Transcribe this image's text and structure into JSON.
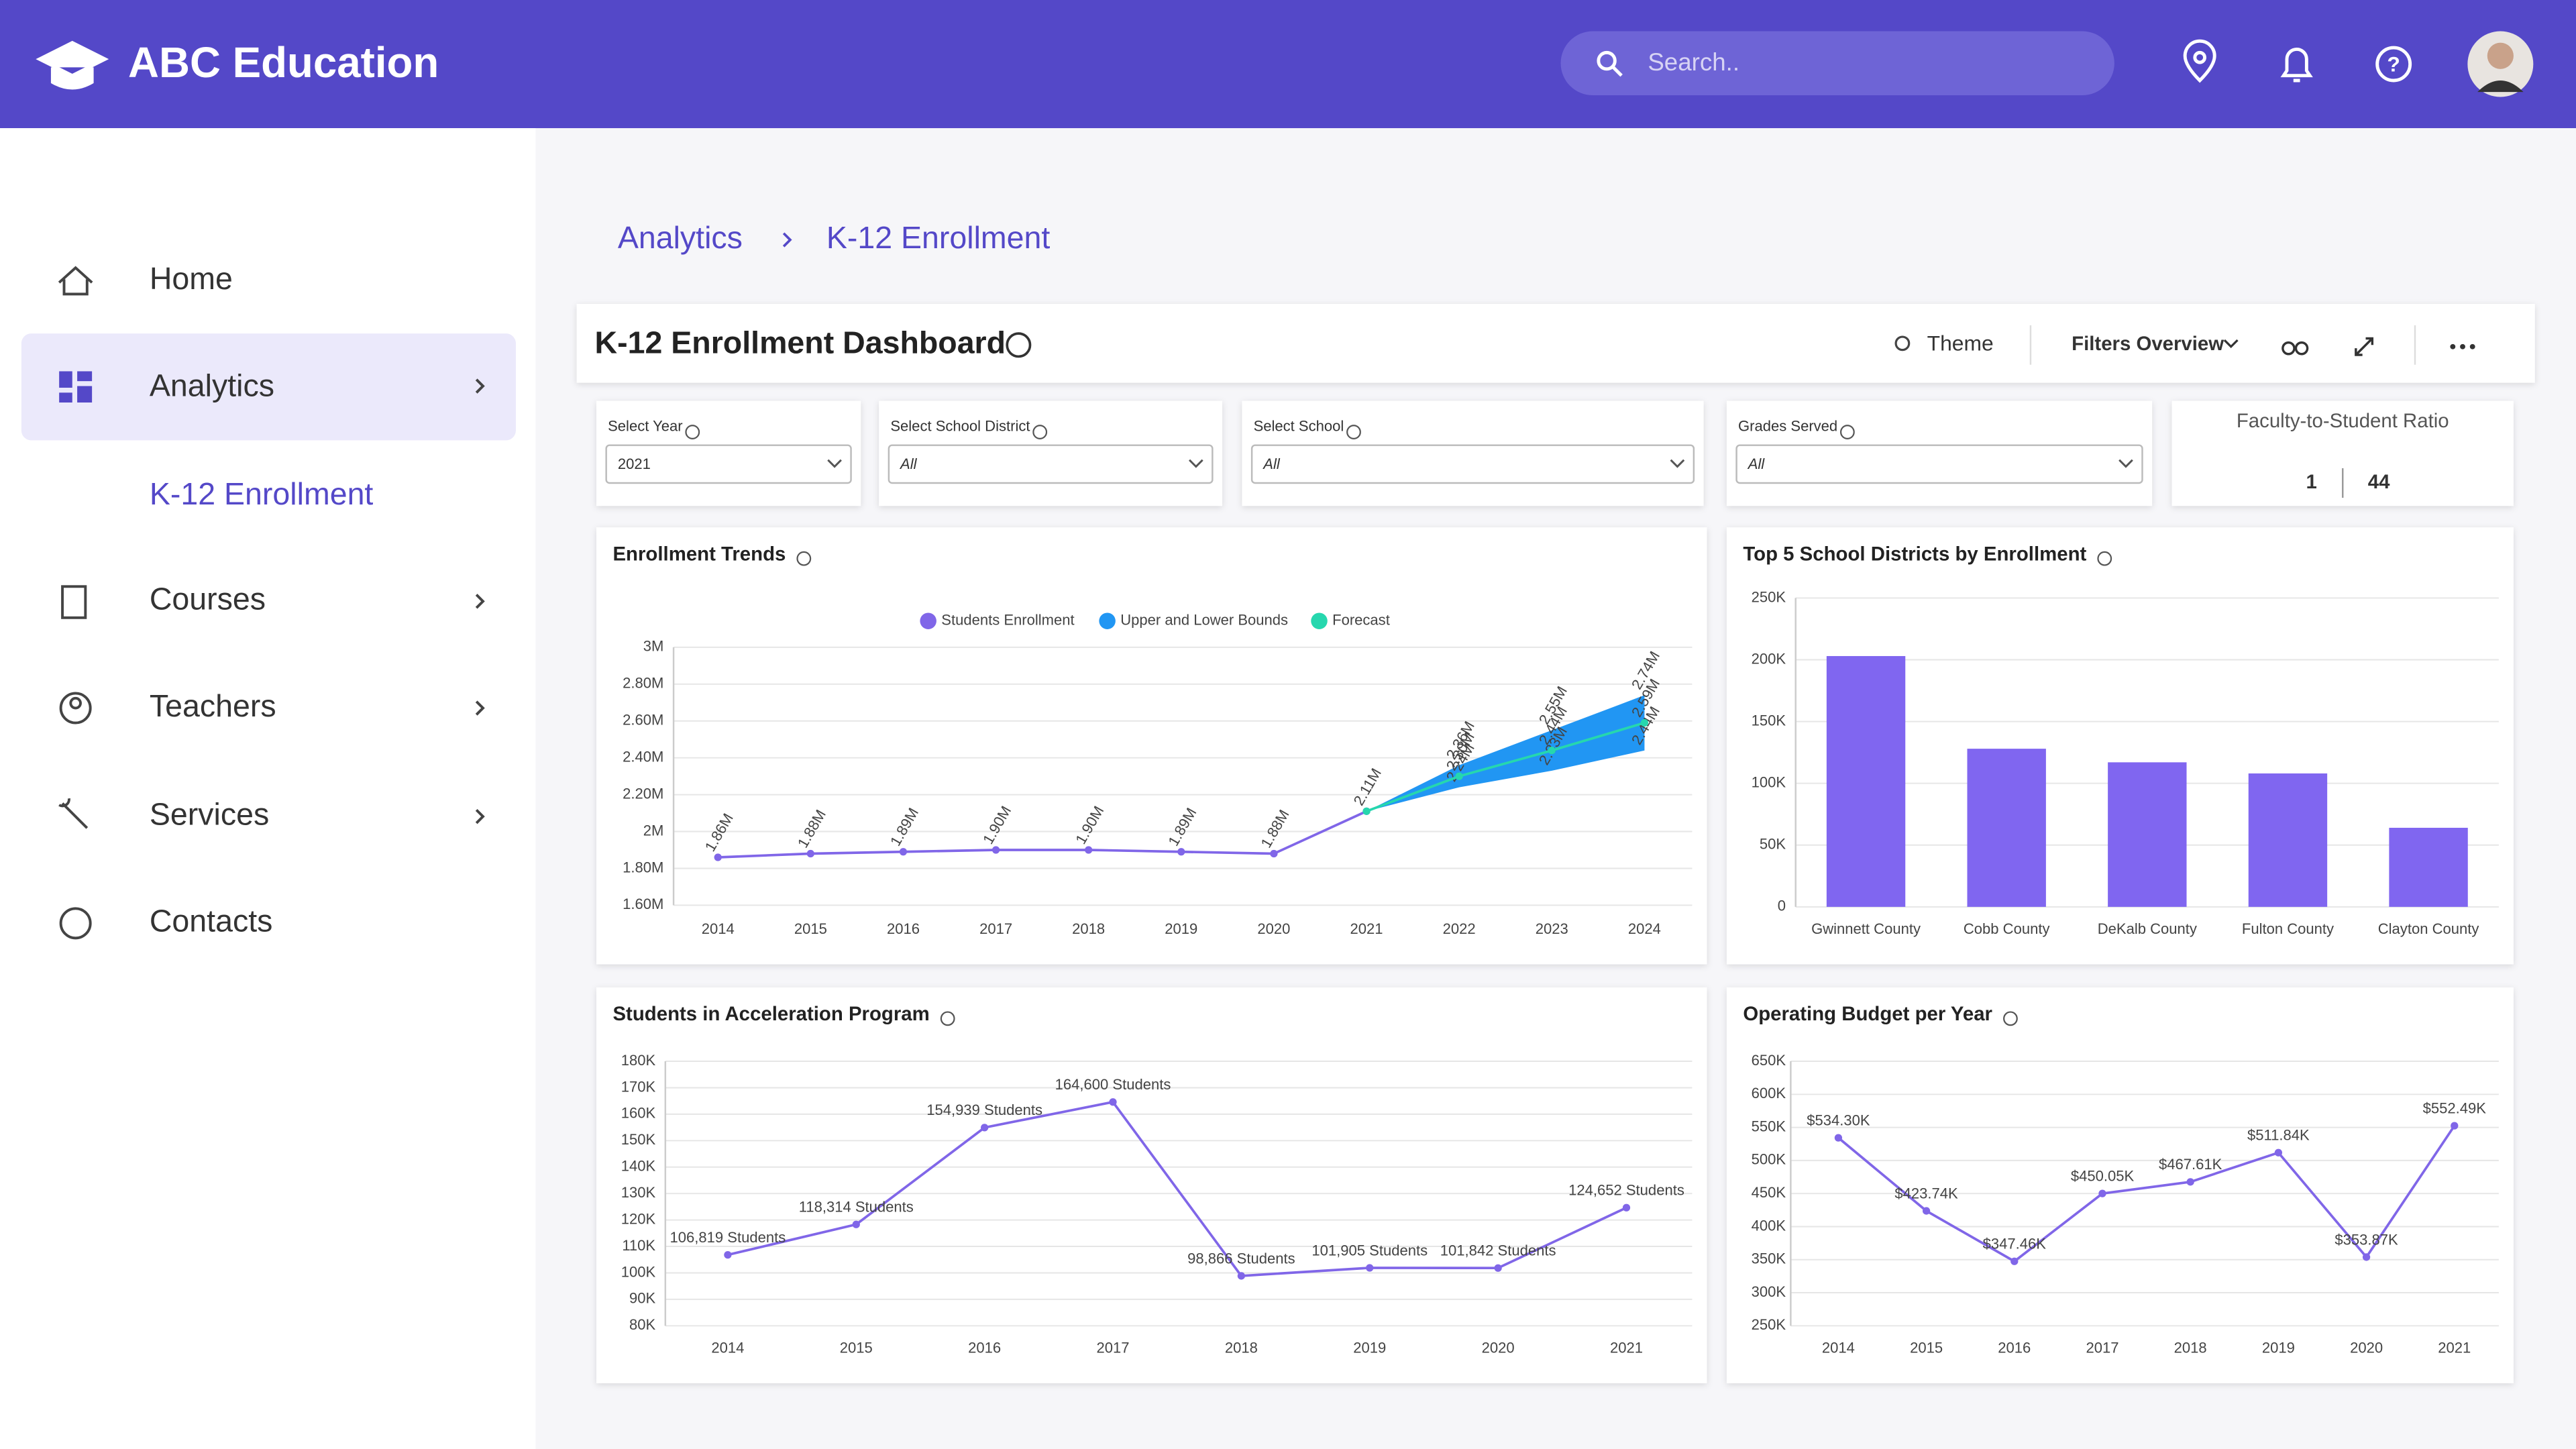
{
  "header": {
    "brand": "ABC Education",
    "search_placeholder": "Search.."
  },
  "sidebar": {
    "items": [
      "Home",
      "Analytics",
      "K-12 Enrollment",
      "Courses",
      "Teachers",
      "Services",
      "Contacts"
    ]
  },
  "breadcrumb": [
    "Analytics",
    "K-12 Enrollment"
  ],
  "dashboard": {
    "title": "K-12 Enrollment Dashboard",
    "actions": [
      "Theme",
      "Filters Overview"
    ]
  },
  "filters": [
    {
      "label": "Select Year",
      "value": "2021"
    },
    {
      "label": "Select School District",
      "value": "All"
    },
    {
      "label": "Select School",
      "value": "All"
    },
    {
      "label": "Grades Served",
      "value": "All"
    }
  ],
  "ratio": {
    "label": "Faculty-to-Student Ratio",
    "values": [
      1,
      44
    ]
  },
  "chart_data": [
    {
      "type": "line",
      "title": "Enrollment Trends",
      "categories": [
        "2014",
        "2015",
        "2016",
        "2017",
        "2018",
        "2019",
        "2020",
        "2021",
        "2022",
        "2023",
        "2024"
      ],
      "series": [
        {
          "name": "Students Enrollment",
          "color": "#8066e8",
          "values": [
            1860000,
            1880000,
            1890000,
            1900000,
            1900000,
            1890000,
            1880000,
            2110000,
            null,
            null,
            null
          ],
          "value_labels": [
            "1.86M",
            "1.88M",
            "1.89M",
            "1.90M",
            "1.90M",
            "1.89M",
            "1.88M",
            "2.11M",
            null,
            null,
            null
          ]
        },
        {
          "name": "Upper and Lower Bounds",
          "color": "#2196f3",
          "band": true,
          "values": [
            null,
            null,
            null,
            null,
            null,
            null,
            null,
            2110000,
            2360000,
            2550000,
            2740000
          ],
          "value_labels": [
            null,
            null,
            null,
            null,
            null,
            null,
            null,
            null,
            "2.36M",
            "2.55M",
            "2.74M"
          ],
          "values_low": [
            null,
            null,
            null,
            null,
            null,
            null,
            null,
            2110000,
            2240000,
            2330000,
            2440000
          ],
          "value_labels_low": [
            null,
            null,
            null,
            null,
            null,
            null,
            null,
            null,
            "2.24M",
            "2.33M",
            "2.44M"
          ]
        },
        {
          "name": "Forecast",
          "color": "#26d7ae",
          "values": [
            null,
            null,
            null,
            null,
            null,
            null,
            null,
            2110000,
            2300000,
            2440000,
            2590000
          ],
          "value_labels": [
            null,
            null,
            null,
            null,
            null,
            null,
            null,
            null,
            "2.30M",
            "2.44M",
            "2.59M"
          ]
        }
      ],
      "ylim": [
        1600000,
        3000000
      ],
      "yticks": [
        {
          "value": 1600000,
          "label": "1.60M"
        },
        {
          "value": 1800000,
          "label": "1.80M"
        },
        {
          "value": 2000000,
          "label": "2M"
        },
        {
          "value": 2200000,
          "label": "2.20M"
        },
        {
          "value": 2400000,
          "label": "2.40M"
        },
        {
          "value": 2600000,
          "label": "2.60M"
        },
        {
          "value": 2800000,
          "label": "2.80M"
        },
        {
          "value": 3000000,
          "label": "3M"
        }
      ],
      "grid": true,
      "legend": "top"
    },
    {
      "type": "bar",
      "title": "Top 5 School Districts by Enrollment",
      "categories": [
        "Gwinnett County",
        "Cobb County",
        "DeKalb County",
        "Fulton County",
        "Clayton County"
      ],
      "values": [
        203000,
        128000,
        117000,
        108000,
        64000
      ],
      "color": "#8066f0",
      "ylim": [
        0,
        250000
      ],
      "yticks": [
        0,
        {
          "value": 50000,
          "label": "50K"
        },
        {
          "value": 100000,
          "label": "100K"
        },
        {
          "value": 150000,
          "label": "150K"
        },
        {
          "value": 200000,
          "label": "200K"
        },
        {
          "value": 250000,
          "label": "250K"
        }
      ],
      "grid": true
    },
    {
      "type": "line",
      "title": "Students in Acceleration Program",
      "categories": [
        "2014",
        "2015",
        "2016",
        "2017",
        "2018",
        "2019",
        "2020",
        "2021"
      ],
      "series": [
        {
          "name": "Students",
          "color": "#8066e8",
          "values": [
            106819,
            118314,
            154939,
            164600,
            98866,
            101905,
            101842,
            124652
          ],
          "value_labels": [
            "106,819 Students",
            "118,314 Students",
            "154,939 Students",
            "164,600 Students",
            "98,866 Students",
            "101,905 Students",
            "101,842 Students",
            "124,652 Students"
          ]
        }
      ],
      "ylim": [
        80000,
        180000
      ],
      "yticks": [
        {
          "value": 80000,
          "label": "80K"
        },
        {
          "value": 90000,
          "label": "90K"
        },
        {
          "value": 100000,
          "label": "100K"
        },
        {
          "value": 110000,
          "label": "110K"
        },
        {
          "value": 120000,
          "label": "120K"
        },
        {
          "value": 130000,
          "label": "130K"
        },
        {
          "value": 140000,
          "label": "140K"
        },
        {
          "value": 150000,
          "label": "150K"
        },
        {
          "value": 160000,
          "label": "160K"
        },
        {
          "value": 170000,
          "label": "170K"
        },
        {
          "value": 180000,
          "label": "180K"
        }
      ],
      "grid": true
    },
    {
      "type": "line",
      "title": "Operating Budget per Year",
      "categories": [
        "2014",
        "2015",
        "2016",
        "2017",
        "2018",
        "2019",
        "2020",
        "2021"
      ],
      "series": [
        {
          "name": "Budget",
          "color": "#8066e8",
          "values": [
            534300,
            423740,
            347460,
            450050,
            467610,
            511840,
            353870,
            552490
          ],
          "value_labels": [
            "$534.30K",
            "$423.74K",
            "$347.46K",
            "$450.05K",
            "$467.61K",
            "$511.84K",
            "$353.87K",
            "$552.49K"
          ]
        }
      ],
      "ylim": [
        250000,
        650000
      ],
      "yticks": [
        {
          "value": 250000,
          "label": "250K"
        },
        {
          "value": 300000,
          "label": "300K"
        },
        {
          "value": 350000,
          "label": "350K"
        },
        {
          "value": 400000,
          "label": "400K"
        },
        {
          "value": 450000,
          "label": "450K"
        },
        {
          "value": 500000,
          "label": "500K"
        },
        {
          "value": 550000,
          "label": "550K"
        },
        {
          "value": 600000,
          "label": "600K"
        },
        {
          "value": 650000,
          "label": "650K"
        }
      ],
      "grid": true
    }
  ]
}
